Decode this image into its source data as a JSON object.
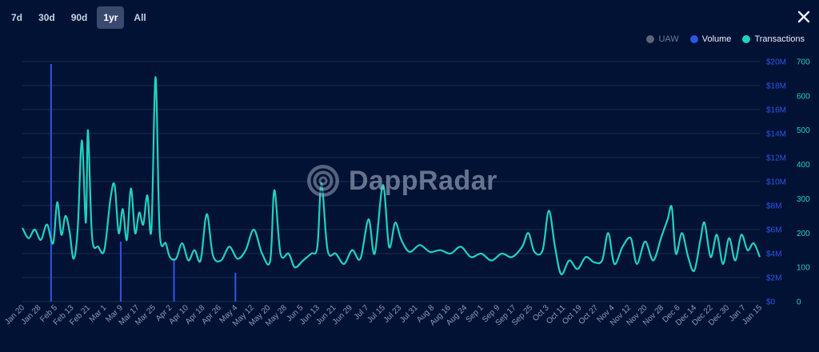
{
  "range_selector": {
    "options": [
      "7d",
      "30d",
      "90d",
      "1yr",
      "All"
    ],
    "active": "1yr"
  },
  "close_icon": "close-icon",
  "watermark": {
    "text": "DappRadar",
    "icon": "radar-logo-icon"
  },
  "legend": [
    {
      "label": "UAW",
      "color": "#5b6478",
      "enabled": false
    },
    {
      "label": "Volume",
      "color": "#2f54e6",
      "enabled": true
    },
    {
      "label": "Transactions",
      "color": "#1fd3c0",
      "enabled": true
    }
  ],
  "chart_data": {
    "type": "line",
    "x_start": "2023-01-20",
    "x_end": "2024-01-15",
    "x_tick_labels": [
      "Jan 20",
      "Jan 28",
      "Feb 5",
      "Feb 13",
      "Feb 21",
      "Mar 1",
      "Mar 9",
      "Mar 17",
      "Mar 25",
      "Apr 2",
      "Apr 10",
      "Apr 18",
      "Apr 26",
      "May 4",
      "May 12",
      "May 20",
      "May 28",
      "Jun 5",
      "Jun 13",
      "Jun 21",
      "Jun 29",
      "Jul 7",
      "Jul 15",
      "Jul 23",
      "Jul 31",
      "Aug 8",
      "Aug 16",
      "Aug 24",
      "Sep 1",
      "Sep 9",
      "Sep 17",
      "Sep 25",
      "Oct 3",
      "Oct 11",
      "Oct 19",
      "Oct 27",
      "Nov 4",
      "Nov 12",
      "Nov 20",
      "Nov 28",
      "Dec 6",
      "Dec 14",
      "Dec 22",
      "Dec 30",
      "Jan 7",
      "Jan 15"
    ],
    "y_left": {
      "label": "",
      "min": 0,
      "max": 20000000,
      "ticks": [
        "$0",
        "$2M",
        "$4M",
        "$6M",
        "$8M",
        "$10M",
        "$12M",
        "$14M",
        "$16M",
        "$18M",
        "$20M"
      ],
      "color": "#2f54e6"
    },
    "y_right": {
      "label": "",
      "min": 0,
      "max": 700,
      "ticks": [
        "0",
        "100",
        "200",
        "300",
        "400",
        "500",
        "600",
        "700"
      ],
      "color": "#1fd3c0"
    },
    "grid": true,
    "legend_position": "top-right",
    "series": [
      {
        "name": "Volume",
        "axis": "left",
        "color": "#2f54e6",
        "style": "bar",
        "points": [
          {
            "x": "2023-02-03",
            "y": 19800000
          },
          {
            "x": "2023-03-09",
            "y": 5000000
          },
          {
            "x": "2023-04-04",
            "y": 3600000
          },
          {
            "x": "2023-05-04",
            "y": 2400000
          }
        ]
      },
      {
        "name": "Transactions",
        "axis": "right",
        "color": "#1fd3c0",
        "style": "line",
        "keypoints": [
          {
            "x": "2023-01-20",
            "y": 215
          },
          {
            "x": "2023-01-23",
            "y": 185
          },
          {
            "x": "2023-01-26",
            "y": 210
          },
          {
            "x": "2023-01-29",
            "y": 180
          },
          {
            "x": "2023-02-01",
            "y": 225
          },
          {
            "x": "2023-02-04",
            "y": 170
          },
          {
            "x": "2023-02-06",
            "y": 290
          },
          {
            "x": "2023-02-08",
            "y": 195
          },
          {
            "x": "2023-02-10",
            "y": 250
          },
          {
            "x": "2023-02-12",
            "y": 205
          },
          {
            "x": "2023-02-14",
            "y": 125
          },
          {
            "x": "2023-02-16",
            "y": 210
          },
          {
            "x": "2023-02-18",
            "y": 470
          },
          {
            "x": "2023-02-20",
            "y": 230
          },
          {
            "x": "2023-02-21",
            "y": 500
          },
          {
            "x": "2023-02-23",
            "y": 190
          },
          {
            "x": "2023-02-26",
            "y": 160
          },
          {
            "x": "2023-03-01",
            "y": 150
          },
          {
            "x": "2023-03-04",
            "y": 300
          },
          {
            "x": "2023-03-06",
            "y": 340
          },
          {
            "x": "2023-03-08",
            "y": 200
          },
          {
            "x": "2023-03-10",
            "y": 270
          },
          {
            "x": "2023-03-12",
            "y": 180
          },
          {
            "x": "2023-03-14",
            "y": 330
          },
          {
            "x": "2023-03-16",
            "y": 200
          },
          {
            "x": "2023-03-18",
            "y": 260
          },
          {
            "x": "2023-03-20",
            "y": 225
          },
          {
            "x": "2023-03-22",
            "y": 310
          },
          {
            "x": "2023-03-24",
            "y": 210
          },
          {
            "x": "2023-03-26",
            "y": 655
          },
          {
            "x": "2023-03-28",
            "y": 205
          },
          {
            "x": "2023-03-31",
            "y": 170
          },
          {
            "x": "2023-04-02",
            "y": 130
          },
          {
            "x": "2023-04-05",
            "y": 125
          },
          {
            "x": "2023-04-08",
            "y": 170
          },
          {
            "x": "2023-04-11",
            "y": 120
          },
          {
            "x": "2023-04-14",
            "y": 150
          },
          {
            "x": "2023-04-17",
            "y": 120
          },
          {
            "x": "2023-04-20",
            "y": 255
          },
          {
            "x": "2023-04-23",
            "y": 135
          },
          {
            "x": "2023-04-27",
            "y": 120
          },
          {
            "x": "2023-05-01",
            "y": 160
          },
          {
            "x": "2023-05-05",
            "y": 125
          },
          {
            "x": "2023-05-09",
            "y": 150
          },
          {
            "x": "2023-05-13",
            "y": 210
          },
          {
            "x": "2023-05-17",
            "y": 140
          },
          {
            "x": "2023-05-21",
            "y": 120
          },
          {
            "x": "2023-05-23",
            "y": 325
          },
          {
            "x": "2023-05-26",
            "y": 140
          },
          {
            "x": "2023-05-30",
            "y": 140
          },
          {
            "x": "2023-06-02",
            "y": 100
          },
          {
            "x": "2023-06-06",
            "y": 120
          },
          {
            "x": "2023-06-10",
            "y": 140
          },
          {
            "x": "2023-06-13",
            "y": 160
          },
          {
            "x": "2023-06-15",
            "y": 345
          },
          {
            "x": "2023-06-18",
            "y": 150
          },
          {
            "x": "2023-06-22",
            "y": 140
          },
          {
            "x": "2023-06-26",
            "y": 110
          },
          {
            "x": "2023-06-30",
            "y": 150
          },
          {
            "x": "2023-07-04",
            "y": 125
          },
          {
            "x": "2023-07-08",
            "y": 240
          },
          {
            "x": "2023-07-11",
            "y": 140
          },
          {
            "x": "2023-07-15",
            "y": 340
          },
          {
            "x": "2023-07-18",
            "y": 160
          },
          {
            "x": "2023-07-21",
            "y": 230
          },
          {
            "x": "2023-07-24",
            "y": 180
          },
          {
            "x": "2023-07-28",
            "y": 145
          },
          {
            "x": "2023-08-02",
            "y": 165
          },
          {
            "x": "2023-08-07",
            "y": 145
          },
          {
            "x": "2023-08-12",
            "y": 150
          },
          {
            "x": "2023-08-17",
            "y": 140
          },
          {
            "x": "2023-08-22",
            "y": 160
          },
          {
            "x": "2023-08-27",
            "y": 130
          },
          {
            "x": "2023-09-01",
            "y": 140
          },
          {
            "x": "2023-09-06",
            "y": 120
          },
          {
            "x": "2023-09-11",
            "y": 140
          },
          {
            "x": "2023-09-16",
            "y": 130
          },
          {
            "x": "2023-09-21",
            "y": 160
          },
          {
            "x": "2023-09-24",
            "y": 200
          },
          {
            "x": "2023-09-27",
            "y": 145
          },
          {
            "x": "2023-10-01",
            "y": 150
          },
          {
            "x": "2023-10-04",
            "y": 265
          },
          {
            "x": "2023-10-07",
            "y": 160
          },
          {
            "x": "2023-10-10",
            "y": 80
          },
          {
            "x": "2023-10-14",
            "y": 120
          },
          {
            "x": "2023-10-18",
            "y": 95
          },
          {
            "x": "2023-10-22",
            "y": 130
          },
          {
            "x": "2023-10-26",
            "y": 115
          },
          {
            "x": "2023-10-30",
            "y": 120
          },
          {
            "x": "2023-11-02",
            "y": 200
          },
          {
            "x": "2023-11-05",
            "y": 110
          },
          {
            "x": "2023-11-09",
            "y": 160
          },
          {
            "x": "2023-11-13",
            "y": 185
          },
          {
            "x": "2023-11-16",
            "y": 110
          },
          {
            "x": "2023-11-20",
            "y": 175
          },
          {
            "x": "2023-11-24",
            "y": 120
          },
          {
            "x": "2023-11-28",
            "y": 190
          },
          {
            "x": "2023-12-01",
            "y": 240
          },
          {
            "x": "2023-12-03",
            "y": 275
          },
          {
            "x": "2023-12-05",
            "y": 140
          },
          {
            "x": "2023-12-08",
            "y": 200
          },
          {
            "x": "2023-12-11",
            "y": 130
          },
          {
            "x": "2023-12-14",
            "y": 90
          },
          {
            "x": "2023-12-17",
            "y": 180
          },
          {
            "x": "2023-12-19",
            "y": 230
          },
          {
            "x": "2023-12-22",
            "y": 130
          },
          {
            "x": "2023-12-25",
            "y": 195
          },
          {
            "x": "2023-12-28",
            "y": 110
          },
          {
            "x": "2023-12-31",
            "y": 185
          },
          {
            "x": "2024-01-03",
            "y": 120
          },
          {
            "x": "2024-01-06",
            "y": 195
          },
          {
            "x": "2024-01-09",
            "y": 150
          },
          {
            "x": "2024-01-12",
            "y": 170
          },
          {
            "x": "2024-01-15",
            "y": 130
          }
        ]
      }
    ]
  }
}
